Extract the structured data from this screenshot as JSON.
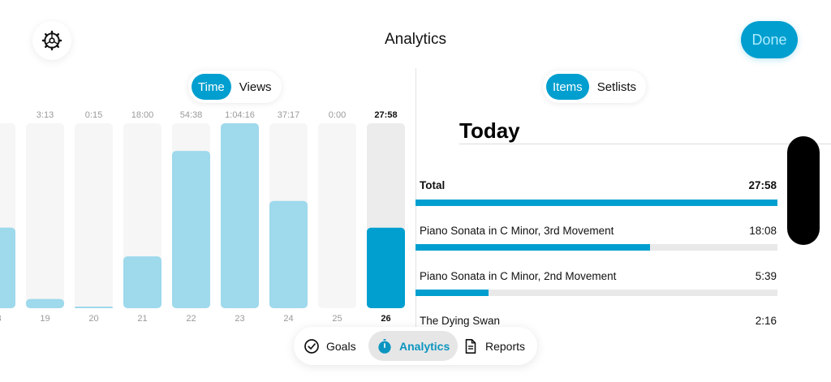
{
  "header": {
    "title": "Analytics",
    "done_label": "Done"
  },
  "left_toggle": {
    "options": [
      "Time",
      "Views"
    ],
    "selected": "Time"
  },
  "right_toggle": {
    "options": [
      "Items",
      "Setlists"
    ],
    "selected": "Items"
  },
  "chart_data": {
    "type": "bar",
    "categories": [
      "18",
      "19",
      "20",
      "21",
      "22",
      "23",
      "24",
      "25",
      "26"
    ],
    "value_labels": [
      "",
      "3:13",
      "0:15",
      "18:00",
      "54:38",
      "1:04:16",
      "37:17",
      "0:00",
      "27:58"
    ],
    "values_seconds": [
      1680,
      193,
      15,
      1080,
      3278,
      3856,
      2237,
      0,
      1678
    ],
    "highlighted_category": "26",
    "ylim": [
      0,
      3856
    ],
    "grid": false
  },
  "today": {
    "title": "Today",
    "total_label": "Total",
    "total_value": "27:58",
    "total_fraction": 1.0,
    "items": [
      {
        "name": "Piano Sonata in C Minor, 3rd Movement",
        "duration": "18:08",
        "fraction": 0.648
      },
      {
        "name": "Piano Sonata in C Minor, 2nd Movement",
        "duration": "5:39",
        "fraction": 0.202
      },
      {
        "name": "The Dying Swan",
        "duration": "2:16",
        "fraction": 0.081
      }
    ]
  },
  "tabs": [
    {
      "label": "Goals",
      "icon": "check-circle-icon"
    },
    {
      "label": "Analytics",
      "icon": "stopwatch-icon",
      "active": true
    },
    {
      "label": "Reports",
      "icon": "document-icon"
    }
  ],
  "colors": {
    "accent": "#019fcf",
    "bar_light": "#9ed9ec",
    "track": "#f6f6f6",
    "track_today": "#ececec"
  }
}
